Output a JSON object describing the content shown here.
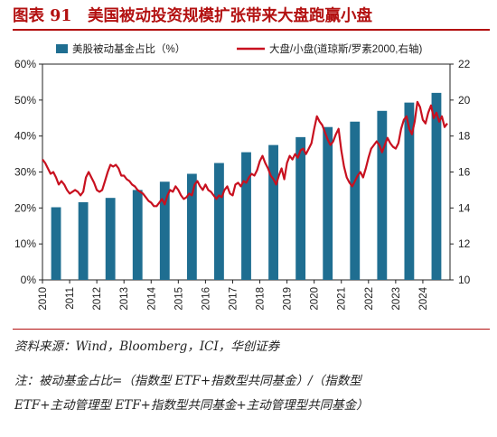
{
  "title": "图表 91　美国被动投资规模扩张带来大盘跑赢小盘",
  "source": "资料来源：Wind，Bloomberg，ICI，华创证券",
  "note_line1": "注：被动基金占比=（指数型 ETF+指数型共同基金）/（指数型",
  "note_line2": "ETF+主动管理型 ETF+指数型共同基金+主动管理型共同基金）",
  "colors": {
    "bar": "#1f6e91",
    "line": "#c8101f",
    "title": "#b31111"
  },
  "chart_data": {
    "type": "bar+line",
    "x_categories": [
      "2010",
      "2011",
      "2012",
      "2013",
      "2014",
      "2015",
      "2016",
      "2017",
      "2018",
      "2019",
      "2020",
      "2021",
      "2022",
      "2023",
      "2024"
    ],
    "series": [
      {
        "name": "美股被动基金占比（%）",
        "type": "bar",
        "axis": "left",
        "values": [
          20.2,
          21.6,
          22.8,
          25.0,
          27.3,
          29.5,
          32.5,
          35.5,
          37.5,
          39.7,
          42.5,
          44.0,
          47.0,
          49.3,
          52.0
        ]
      },
      {
        "name": "大盘/小盘(道琼斯/罗素2000,右轴)",
        "type": "line",
        "axis": "right",
        "points": [
          [
            2010.0,
            16.7
          ],
          [
            2010.1,
            16.5
          ],
          [
            2010.2,
            16.2
          ],
          [
            2010.3,
            15.9
          ],
          [
            2010.4,
            16.0
          ],
          [
            2010.5,
            15.7
          ],
          [
            2010.6,
            15.3
          ],
          [
            2010.7,
            15.5
          ],
          [
            2010.8,
            15.3
          ],
          [
            2010.9,
            15.0
          ],
          [
            2011.0,
            14.8
          ],
          [
            2011.1,
            14.9
          ],
          [
            2011.2,
            15.0
          ],
          [
            2011.3,
            14.9
          ],
          [
            2011.4,
            14.7
          ],
          [
            2011.5,
            14.9
          ],
          [
            2011.6,
            15.7
          ],
          [
            2011.7,
            16.0
          ],
          [
            2011.8,
            15.7
          ],
          [
            2011.9,
            15.4
          ],
          [
            2012.0,
            15.0
          ],
          [
            2012.1,
            14.9
          ],
          [
            2012.2,
            15.0
          ],
          [
            2012.3,
            15.5
          ],
          [
            2012.4,
            16.0
          ],
          [
            2012.5,
            16.4
          ],
          [
            2012.6,
            16.3
          ],
          [
            2012.7,
            16.4
          ],
          [
            2012.8,
            16.2
          ],
          [
            2012.9,
            15.8
          ],
          [
            2013.0,
            15.8
          ],
          [
            2013.1,
            15.6
          ],
          [
            2013.2,
            15.5
          ],
          [
            2013.3,
            15.3
          ],
          [
            2013.4,
            15.2
          ],
          [
            2013.5,
            15.0
          ],
          [
            2013.6,
            14.9
          ],
          [
            2013.7,
            14.8
          ],
          [
            2013.8,
            14.6
          ],
          [
            2013.9,
            14.4
          ],
          [
            2014.0,
            14.3
          ],
          [
            2014.1,
            14.1
          ],
          [
            2014.2,
            14.1
          ],
          [
            2014.3,
            14.3
          ],
          [
            2014.4,
            14.5
          ],
          [
            2014.5,
            14.2
          ],
          [
            2014.6,
            14.7
          ],
          [
            2014.7,
            15.0
          ],
          [
            2014.8,
            14.9
          ],
          [
            2014.9,
            15.2
          ],
          [
            2015.0,
            15.0
          ],
          [
            2015.1,
            14.7
          ],
          [
            2015.2,
            14.5
          ],
          [
            2015.3,
            14.6
          ],
          [
            2015.4,
            14.8
          ],
          [
            2015.5,
            14.7
          ],
          [
            2015.6,
            15.3
          ],
          [
            2015.7,
            15.5
          ],
          [
            2015.8,
            15.2
          ],
          [
            2015.9,
            15.0
          ],
          [
            2016.0,
            15.3
          ],
          [
            2016.1,
            15.0
          ],
          [
            2016.2,
            14.9
          ],
          [
            2016.3,
            14.7
          ],
          [
            2016.4,
            14.5
          ],
          [
            2016.5,
            14.7
          ],
          [
            2016.6,
            14.6
          ],
          [
            2016.7,
            15.0
          ],
          [
            2016.8,
            15.2
          ],
          [
            2016.9,
            14.8
          ],
          [
            2017.0,
            14.7
          ],
          [
            2017.1,
            15.3
          ],
          [
            2017.2,
            15.4
          ],
          [
            2017.3,
            15.2
          ],
          [
            2017.4,
            15.5
          ],
          [
            2017.5,
            15.4
          ],
          [
            2017.6,
            15.7
          ],
          [
            2017.7,
            15.9
          ],
          [
            2017.8,
            15.8
          ],
          [
            2017.9,
            16.1
          ],
          [
            2018.0,
            16.6
          ],
          [
            2018.1,
            16.9
          ],
          [
            2018.2,
            16.5
          ],
          [
            2018.3,
            16.2
          ],
          [
            2018.4,
            15.8
          ],
          [
            2018.5,
            15.6
          ],
          [
            2018.6,
            15.3
          ],
          [
            2018.7,
            15.8
          ],
          [
            2018.8,
            16.2
          ],
          [
            2018.9,
            15.6
          ],
          [
            2019.0,
            16.5
          ],
          [
            2019.1,
            16.9
          ],
          [
            2019.2,
            16.7
          ],
          [
            2019.3,
            17.0
          ],
          [
            2019.4,
            16.8
          ],
          [
            2019.5,
            17.2
          ],
          [
            2019.6,
            17.3
          ],
          [
            2019.7,
            17.0
          ],
          [
            2019.8,
            17.3
          ],
          [
            2019.9,
            17.6
          ],
          [
            2020.0,
            18.4
          ],
          [
            2020.1,
            19.1
          ],
          [
            2020.2,
            18.8
          ],
          [
            2020.3,
            18.6
          ],
          [
            2020.4,
            18.2
          ],
          [
            2020.5,
            17.8
          ],
          [
            2020.6,
            17.5
          ],
          [
            2020.7,
            17.7
          ],
          [
            2020.8,
            18.1
          ],
          [
            2020.9,
            18.4
          ],
          [
            2021.0,
            17.2
          ],
          [
            2021.1,
            16.3
          ],
          [
            2021.2,
            15.7
          ],
          [
            2021.3,
            15.4
          ],
          [
            2021.4,
            15.2
          ],
          [
            2021.5,
            15.5
          ],
          [
            2021.6,
            15.8
          ],
          [
            2021.7,
            16.0
          ],
          [
            2021.8,
            15.7
          ],
          [
            2021.9,
            16.2
          ],
          [
            2022.0,
            16.8
          ],
          [
            2022.1,
            17.3
          ],
          [
            2022.2,
            17.5
          ],
          [
            2022.3,
            17.7
          ],
          [
            2022.4,
            17.5
          ],
          [
            2022.5,
            17.1
          ],
          [
            2022.6,
            17.5
          ],
          [
            2022.7,
            17.9
          ],
          [
            2022.8,
            17.6
          ],
          [
            2022.9,
            17.4
          ],
          [
            2023.0,
            17.3
          ],
          [
            2023.1,
            17.6
          ],
          [
            2023.2,
            18.4
          ],
          [
            2023.3,
            18.9
          ],
          [
            2023.4,
            19.1
          ],
          [
            2023.5,
            18.4
          ],
          [
            2023.6,
            18.1
          ],
          [
            2023.7,
            18.8
          ],
          [
            2023.8,
            19.9
          ],
          [
            2023.9,
            19.6
          ],
          [
            2024.0,
            18.9
          ],
          [
            2024.1,
            18.7
          ],
          [
            2024.2,
            19.3
          ],
          [
            2024.3,
            19.7
          ],
          [
            2024.4,
            19.0
          ],
          [
            2024.5,
            19.3
          ],
          [
            2024.6,
            18.8
          ],
          [
            2024.7,
            19.1
          ],
          [
            2024.8,
            18.5
          ],
          [
            2024.9,
            18.7
          ]
        ]
      }
    ],
    "y_left": {
      "min": 0,
      "max": 60,
      "step": 10,
      "format": "%"
    },
    "y_right": {
      "min": 10,
      "max": 22,
      "step": 2
    },
    "grid": false,
    "legend": "top"
  }
}
